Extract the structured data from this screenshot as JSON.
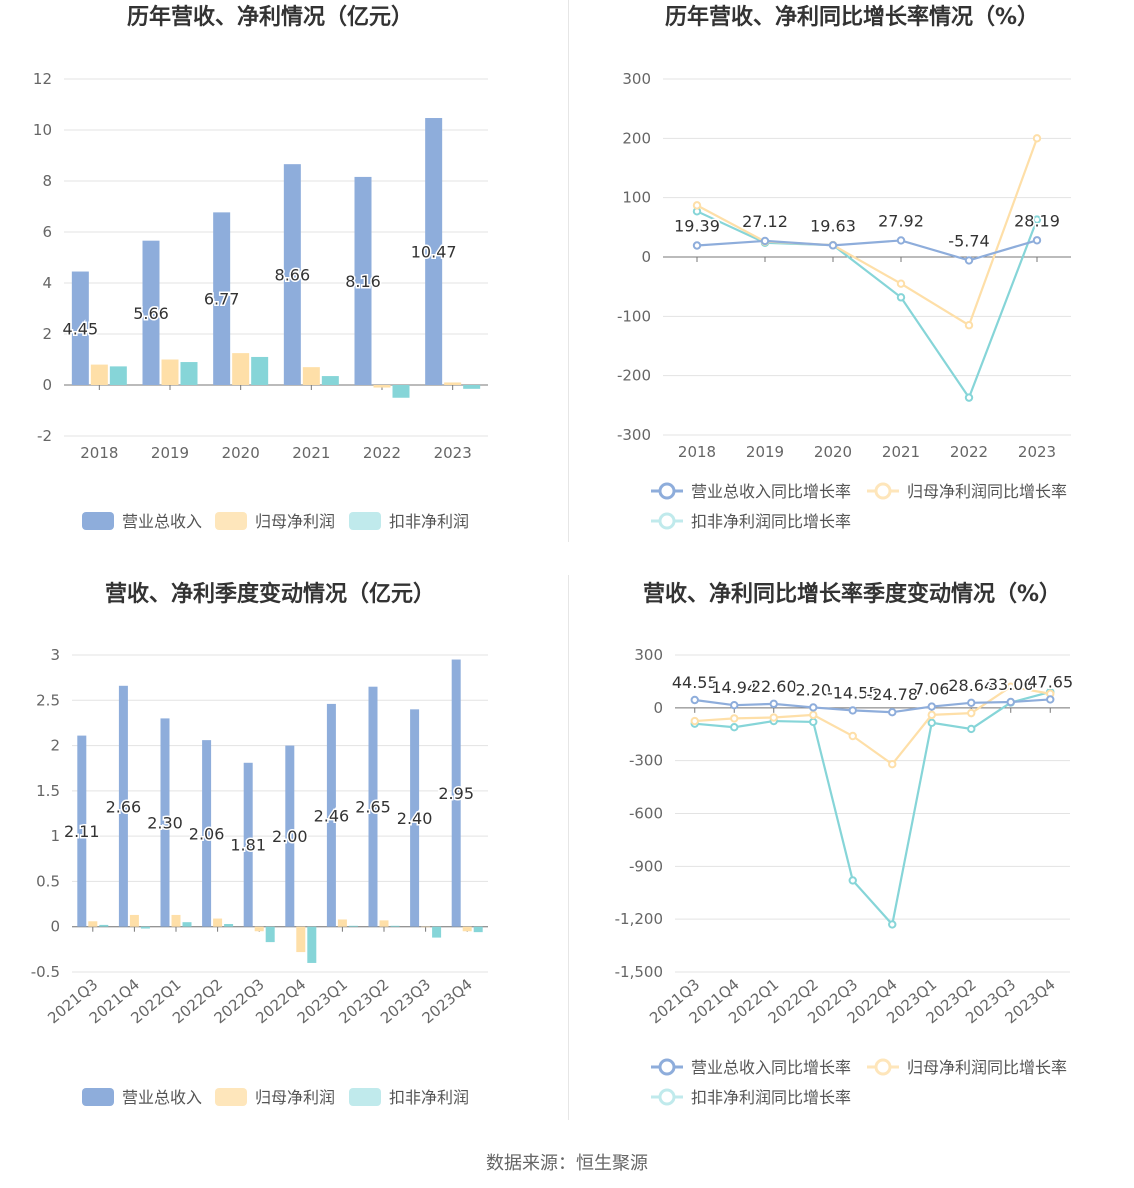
{
  "colors": {
    "revenue": "#8eaddb",
    "net": "#fedfa8",
    "deducted": "#86d5d8"
  },
  "source_text": "数据来源：恒生聚源",
  "chart_data": [
    {
      "type": "bar",
      "title": "历年营收、净利情况（亿元）",
      "categories": [
        "2018",
        "2019",
        "2020",
        "2021",
        "2022",
        "2023"
      ],
      "ylim": [
        -2,
        12
      ],
      "yticks": [
        -2,
        0,
        2,
        4,
        6,
        8,
        10,
        12
      ],
      "series": [
        {
          "name": "营业总收入",
          "values": [
            4.45,
            5.66,
            6.77,
            8.66,
            8.16,
            10.47
          ],
          "labels": [
            "4.45",
            "5.66",
            "6.77",
            "8.66",
            "8.16",
            "10.47"
          ]
        },
        {
          "name": "归母净利润",
          "values": [
            0.8,
            1.0,
            1.25,
            0.7,
            -0.1,
            0.1
          ]
        },
        {
          "name": "扣非净利润",
          "values": [
            0.73,
            0.9,
            1.1,
            0.35,
            -0.5,
            -0.15
          ]
        }
      ]
    },
    {
      "type": "line",
      "title": "历年营收、净利同比增长率情况（%）",
      "categories": [
        "2018",
        "2019",
        "2020",
        "2021",
        "2022",
        "2023"
      ],
      "ylim": [
        -300,
        300
      ],
      "yticks": [
        -300,
        -200,
        -100,
        0,
        100,
        200,
        300
      ],
      "series": [
        {
          "name": "营业总收入同比增长率",
          "values": [
            19.39,
            27.12,
            19.63,
            27.92,
            -5.74,
            28.19
          ],
          "labels": [
            "19.39",
            "27.12",
            "19.63",
            "27.92",
            "-5.74",
            "28.19"
          ]
        },
        {
          "name": "归母净利润同比增长率",
          "values": [
            87,
            26,
            20,
            -45,
            -115,
            200
          ]
        },
        {
          "name": "扣非净利润同比增长率",
          "values": [
            77,
            24,
            20,
            -68,
            -237,
            63
          ]
        }
      ]
    },
    {
      "type": "bar",
      "title": "营收、净利季度变动情况（亿元）",
      "categories": [
        "2021Q3",
        "2021Q4",
        "2022Q1",
        "2022Q2",
        "2022Q3",
        "2022Q4",
        "2023Q1",
        "2023Q2",
        "2023Q3",
        "2023Q4"
      ],
      "ylim": [
        -0.5,
        3
      ],
      "yticks": [
        -0.5,
        0,
        0.5,
        1,
        1.5,
        2,
        2.5,
        3
      ],
      "series": [
        {
          "name": "营业总收入",
          "values": [
            2.11,
            2.66,
            2.3,
            2.06,
            1.81,
            2.0,
            2.46,
            2.65,
            2.4,
            2.95
          ],
          "labels": [
            "2.11",
            "2.66",
            "2.30",
            "2.06",
            "1.81",
            "2.00",
            "2.46",
            "2.65",
            "2.40",
            "2.95"
          ]
        },
        {
          "name": "归母净利润",
          "values": [
            0.06,
            0.13,
            0.13,
            0.09,
            -0.05,
            -0.28,
            0.08,
            0.07,
            0.0,
            -0.05
          ]
        },
        {
          "name": "扣非净利润",
          "values": [
            0.02,
            -0.02,
            0.05,
            0.03,
            -0.17,
            -0.4,
            0.01,
            0.01,
            -0.12,
            -0.06
          ]
        }
      ]
    },
    {
      "type": "line",
      "title": "营收、净利同比增长率季度变动情况（%）",
      "categories": [
        "2021Q3",
        "2021Q4",
        "2022Q1",
        "2022Q2",
        "2022Q3",
        "2022Q4",
        "2023Q1",
        "2023Q2",
        "2023Q3",
        "2023Q4"
      ],
      "ylim": [
        -1500,
        300
      ],
      "yticks": [
        -1500,
        -1200,
        -900,
        -600,
        -300,
        0,
        300
      ],
      "ytick_labels": [
        "-1,500",
        "-1,200",
        "-900",
        "-600",
        "-300",
        "0",
        "300"
      ],
      "series": [
        {
          "name": "营业总收入同比增长率",
          "values": [
            44.55,
            14.94,
            22.6,
            2.2,
            -14.55,
            -24.78,
            7.06,
            28.64,
            33.06,
            47.65
          ],
          "labels": [
            "44.55",
            "14.94",
            "22.60",
            "2.20",
            "-14.55",
            "-24.78",
            "7.06",
            "28.64",
            "33.06",
            "47.65"
          ]
        },
        {
          "name": "归母净利润同比增长率",
          "values": [
            -75,
            -60,
            -55,
            -40,
            -160,
            -320,
            -40,
            -30,
            120,
            80
          ]
        },
        {
          "name": "扣非净利润同比增长率",
          "values": [
            -90,
            -110,
            -75,
            -80,
            -980,
            -1230,
            -85,
            -120,
            30,
            90
          ]
        }
      ]
    }
  ]
}
